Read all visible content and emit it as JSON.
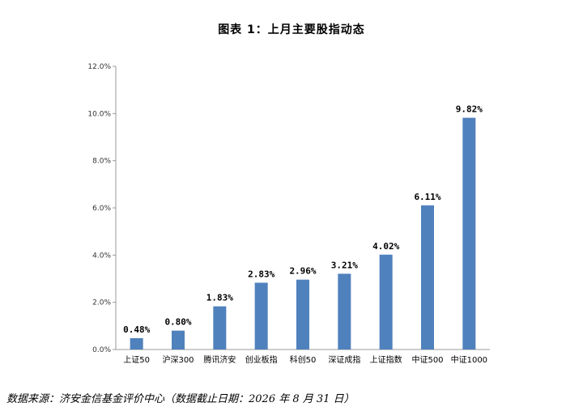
{
  "chart_data": {
    "type": "bar",
    "title": "图表 1：上月主要股指动态",
    "categories": [
      "上证50",
      "沪深300",
      "腾讯济安",
      "创业板指",
      "科创50",
      "深证成指",
      "上证指数",
      "中证500",
      "中证1000"
    ],
    "values": [
      0.48,
      0.8,
      1.83,
      2.83,
      2.96,
      3.21,
      4.02,
      6.11,
      9.82
    ],
    "value_labels": [
      "0.48%",
      "0.80%",
      "1.83%",
      "2.83%",
      "2.96%",
      "3.21%",
      "4.02%",
      "6.11%",
      "9.82%"
    ],
    "ylim": [
      0,
      12
    ],
    "yticks": [
      0,
      2,
      4,
      6,
      8,
      10,
      12
    ],
    "ytick_labels": [
      "0.0%",
      "2.0%",
      "4.0%",
      "6.0%",
      "8.0%",
      "10.0%",
      "12.0%"
    ],
    "bar_color": "#4f81bd",
    "grid": false,
    "xlabel": "",
    "ylabel": ""
  },
  "source_note": "数据来源：济安金信基金评价中心（数据截止日期：2026 年 8 月 31 日）"
}
